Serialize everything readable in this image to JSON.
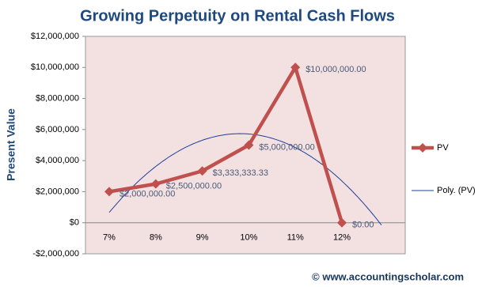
{
  "chart_data": {
    "type": "line",
    "title": "Growing Perpetuity on Rental Cash Flows",
    "y_label": "Present Value",
    "footer": "© www.accountingscholar.com",
    "categories": [
      "7%",
      "8%",
      "9%",
      "10%",
      "11%",
      "12%"
    ],
    "series": [
      {
        "name": "PV",
        "color": "#c0504d",
        "values": [
          2000000,
          2500000,
          3333333.33,
          5000000,
          10000000,
          0
        ],
        "value_labels": [
          "$2,000,000.00",
          "$2,500,000.00",
          "$3,333,333.33",
          "$5,000,000.00",
          "$10,000,000.00",
          "$0.00"
        ]
      }
    ],
    "trendline": {
      "name": "Poly. (PV)",
      "order": 2,
      "color": "#1f3f9f"
    },
    "ylim": [
      -2000000,
      12000000
    ],
    "yticks": [
      {
        "value": -2000000,
        "label": "-$2,000,000"
      },
      {
        "value": 0,
        "label": "$0"
      },
      {
        "value": 2000000,
        "label": "$2,000,000"
      },
      {
        "value": 4000000,
        "label": "$4,000,000"
      },
      {
        "value": 6000000,
        "label": "$6,000,000"
      },
      {
        "value": 8000000,
        "label": "$8,000,000"
      },
      {
        "value": 10000000,
        "label": "$10,000,000"
      },
      {
        "value": 12000000,
        "label": "$12,000,000"
      }
    ],
    "plot_background": "#f2e1e0",
    "legend": "right"
  }
}
